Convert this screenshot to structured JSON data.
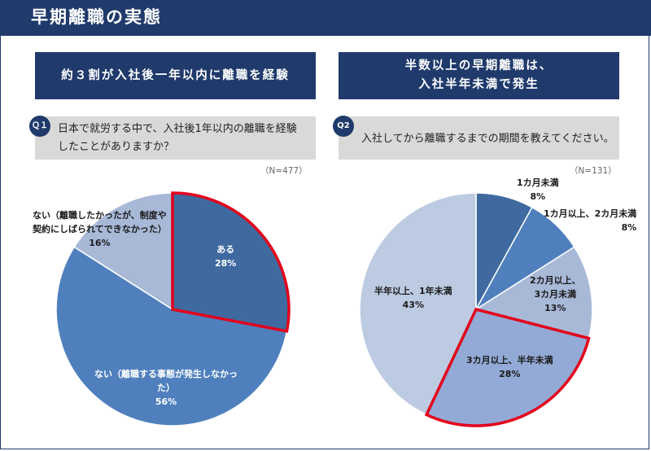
{
  "page_title": "早期離職の実態",
  "left": {
    "headline": "約３割が入社後一年以内に離職を経験",
    "q_badge": "Ｑ１",
    "question_lines": [
      "日本で就労する中で、入社後1年以内の離職を経験",
      "したことがありますか？"
    ],
    "n": "（N=477）"
  },
  "right": {
    "headline_lines": [
      "半数以上の早期離職は、",
      "入社半年未満で発生"
    ],
    "q_badge": "Q2",
    "question": "入社してから離職するまでの期間を教えてください。",
    "n": "（N=131）"
  },
  "chart_data": [
    {
      "type": "pie",
      "title": "",
      "highlighted": "ある",
      "slices": [
        {
          "label": "ある",
          "label_lines": [
            "ある"
          ],
          "value": 28,
          "value_text": "28%",
          "color": "#3f6aa0"
        },
        {
          "label": "ない（離職する事態が発生しなかった）",
          "label_lines": [
            "ない（離職する事態が発生しなかっ",
            "た）"
          ],
          "value": 56,
          "value_text": "56%",
          "color": "#4f80bd"
        },
        {
          "label": "ない（離職したかったが、制度や契約にしばられてできなかった）",
          "label_lines": [
            "ない（離職したかったが、制度や",
            "契約にしばられてできなかった）"
          ],
          "value": 16,
          "value_text": "16%",
          "color": "#a8b9d8"
        }
      ]
    },
    {
      "type": "pie",
      "title": "",
      "highlighted": "3カ月以上、半年未満",
      "slices": [
        {
          "label": "1カ月未満",
          "label_lines": [
            "1カ月未満"
          ],
          "value": 8,
          "value_text": "8%",
          "color": "#3f6aa0"
        },
        {
          "label": "1カ月以上、2カ月未満",
          "label_lines": [
            "1カ月以上、2カ月未満"
          ],
          "value": 8,
          "value_text": "8%",
          "color": "#4f80bd"
        },
        {
          "label": "2カ月以上、3カ月未満",
          "label_lines": [
            "2カ月以上、",
            "3カ月未満"
          ],
          "value": 13,
          "value_text": "13%",
          "color": "#a8b9d8"
        },
        {
          "label": "3カ月以上、半年未満",
          "label_lines": [
            "3カ月以上、半年未満"
          ],
          "value": 28,
          "value_text": "28%",
          "color": "#93aad6"
        },
        {
          "label": "半年以上、1年未満",
          "label_lines": [
            "半年以上、1年未満"
          ],
          "value": 43,
          "value_text": "43%",
          "color": "#bdcbe2"
        }
      ]
    }
  ]
}
